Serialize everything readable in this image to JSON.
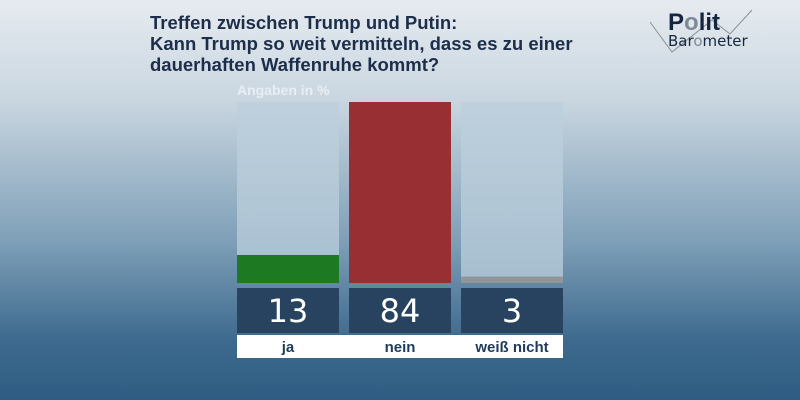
{
  "title_lines": [
    "Treffen zwischen Trump und Putin:",
    "Kann Trump so weit vermitteln, dass es zu einer",
    "dauerhaften Waffenruhe kommt?"
  ],
  "logo": {
    "line1": "Polit",
    "line2": "Barometer"
  },
  "chart_data": {
    "type": "bar",
    "unit_label": "Angaben in %",
    "categories": [
      "ja",
      "nein",
      "weiß nicht"
    ],
    "values": [
      13,
      84,
      3
    ],
    "colors": [
      "#1e7a22",
      "#983033",
      "#8f9599"
    ],
    "ylim": [
      0,
      84
    ],
    "grid": false
  }
}
